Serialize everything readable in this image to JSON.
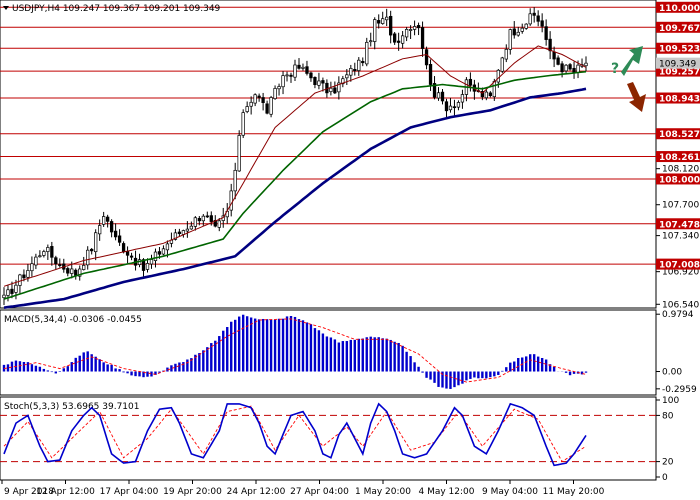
{
  "colors": {
    "level_line": "#c00000",
    "level_badge": "#c00000",
    "price_badge": "#c8c8c8",
    "candle": "#000000",
    "ma_red": "#8b0000",
    "ma_green": "#006400",
    "ma_navy": "#000080",
    "macd_hist": "#0000cc",
    "macd_signal": "#ff0000",
    "stoch_main": "#0000cc",
    "stoch_signal": "#ff0000",
    "arrow_up": "#2e8b57",
    "arrow_down": "#8b2500",
    "question": "#2e8b57"
  },
  "header": {
    "symbol_text": "USDJPY,H4  109.247 109.367 109.201 109.349"
  },
  "signal": {
    "question_mark": "?"
  },
  "chart_data": [
    {
      "type": "candlestick",
      "title": "USDJPY,H4",
      "ohlc_header": {
        "open": 109.247,
        "high": 109.367,
        "low": 109.201,
        "close": 109.349
      },
      "ylim": [
        106.52,
        110.05
      ],
      "y_tick_labels": [
        "110.000",
        "109.767",
        "109.523",
        "109.349",
        "109.257",
        "108.943",
        "108.527",
        "108.261",
        "108.120",
        "108.000",
        "107.700",
        "107.478",
        "107.340",
        "107.008",
        "106.920",
        "106.540"
      ],
      "levels": [
        {
          "label": "110.000",
          "value": 110.0
        },
        {
          "label": "109.767",
          "value": 109.767
        },
        {
          "label": "109.523",
          "value": 109.523
        },
        {
          "label": "109.257",
          "value": 109.257
        },
        {
          "label": "108.943",
          "value": 108.943
        },
        {
          "label": "108.527",
          "value": 108.527
        },
        {
          "label": "108.261",
          "value": 108.261
        },
        {
          "label": "108.000",
          "value": 108.0
        },
        {
          "label": "107.478",
          "value": 107.478
        },
        {
          "label": "107.008",
          "value": 107.008
        }
      ],
      "current_price": {
        "label": "109.349",
        "value": 109.349
      },
      "x_tick_labels": [
        "9 Apr 2018",
        "12 Apr 12:00",
        "17 Apr 04:00",
        "19 Apr 20:00",
        "24 Apr 12:00",
        "27 Apr 04:00",
        "1 May 20:00",
        "4 May 12:00",
        "9 May 04:00",
        "11 May 20:00"
      ],
      "close_anchors": [
        [
          0,
          106.6
        ],
        [
          6,
          106.95
        ],
        [
          10,
          107.2
        ],
        [
          14,
          107.0
        ],
        [
          18,
          106.9
        ],
        [
          22,
          107.2
        ],
        [
          25,
          107.6
        ],
        [
          28,
          107.3
        ],
        [
          32,
          107.1
        ],
        [
          35,
          106.95
        ],
        [
          38,
          107.1
        ],
        [
          42,
          107.3
        ],
        [
          46,
          107.45
        ],
        [
          50,
          107.6
        ],
        [
          53,
          107.4
        ],
        [
          56,
          107.6
        ],
        [
          58,
          108.1
        ],
        [
          60,
          108.8
        ],
        [
          63,
          109.0
        ],
        [
          66,
          108.8
        ],
        [
          70,
          109.2
        ],
        [
          74,
          109.3
        ],
        [
          78,
          109.15
        ],
        [
          82,
          109.0
        ],
        [
          86,
          109.2
        ],
        [
          90,
          109.4
        ],
        [
          93,
          109.8
        ],
        [
          96,
          109.85
        ],
        [
          98,
          109.6
        ],
        [
          102,
          109.8
        ],
        [
          104,
          109.8
        ],
        [
          106,
          109.3
        ],
        [
          108,
          109.0
        ],
        [
          111,
          108.85
        ],
        [
          114,
          108.9
        ],
        [
          116,
          109.1
        ],
        [
          119,
          109.0
        ],
        [
          122,
          108.95
        ],
        [
          124,
          109.3
        ],
        [
          127,
          109.7
        ],
        [
          130,
          109.8
        ],
        [
          133,
          109.9
        ],
        [
          135,
          109.8
        ],
        [
          137,
          109.45
        ],
        [
          140,
          109.3
        ],
        [
          143,
          109.25
        ],
        [
          146,
          109.35
        ]
      ],
      "series": [
        {
          "name": "MA red",
          "anchors": [
            [
              0,
              106.75
            ],
            [
              20,
              107.05
            ],
            [
              40,
              107.25
            ],
            [
              55,
              107.55
            ],
            [
              60,
              107.95
            ],
            [
              68,
              108.6
            ],
            [
              78,
              109.0
            ],
            [
              90,
              109.2
            ],
            [
              100,
              109.4
            ],
            [
              106,
              109.45
            ],
            [
              112,
              109.2
            ],
            [
              120,
              109.0
            ],
            [
              128,
              109.35
            ],
            [
              134,
              109.55
            ],
            [
              140,
              109.45
            ],
            [
              146,
              109.3
            ]
          ]
        },
        {
          "name": "MA green",
          "anchors": [
            [
              0,
              106.6
            ],
            [
              20,
              106.9
            ],
            [
              40,
              107.1
            ],
            [
              55,
              107.3
            ],
            [
              60,
              107.6
            ],
            [
              70,
              108.1
            ],
            [
              80,
              108.55
            ],
            [
              92,
              108.9
            ],
            [
              100,
              109.05
            ],
            [
              110,
              109.1
            ],
            [
              120,
              109.05
            ],
            [
              128,
              109.15
            ],
            [
              136,
              109.2
            ],
            [
              146,
              109.25
            ]
          ]
        },
        {
          "name": "MA navy",
          "anchors": [
            [
              0,
              106.5
            ],
            [
              15,
              106.6
            ],
            [
              30,
              106.8
            ],
            [
              45,
              106.95
            ],
            [
              58,
              107.1
            ],
            [
              68,
              107.5
            ],
            [
              80,
              107.95
            ],
            [
              92,
              108.35
            ],
            [
              102,
              108.6
            ],
            [
              112,
              108.72
            ],
            [
              122,
              108.8
            ],
            [
              132,
              108.95
            ],
            [
              140,
              109.0
            ],
            [
              146,
              109.05
            ]
          ]
        }
      ]
    },
    {
      "type": "bar",
      "title": "MACD(5,34,4) -0.0306 -0.0455",
      "ylim": [
        -0.35,
        1.0
      ],
      "y_tick_labels": [
        "0.9794",
        "0.00",
        "-0.2959"
      ],
      "hist_anchors": [
        [
          0,
          0.1
        ],
        [
          3,
          0.2
        ],
        [
          6,
          0.15
        ],
        [
          10,
          0.05
        ],
        [
          13,
          -0.02
        ],
        [
          16,
          0.1
        ],
        [
          19,
          0.28
        ],
        [
          21,
          0.35
        ],
        [
          24,
          0.2
        ],
        [
          27,
          0.1
        ],
        [
          30,
          0.0
        ],
        [
          33,
          -0.08
        ],
        [
          36,
          -0.1
        ],
        [
          39,
          -0.02
        ],
        [
          42,
          0.1
        ],
        [
          46,
          0.2
        ],
        [
          50,
          0.35
        ],
        [
          54,
          0.6
        ],
        [
          57,
          0.85
        ],
        [
          60,
          0.97
        ],
        [
          64,
          0.9
        ],
        [
          68,
          0.88
        ],
        [
          72,
          0.95
        ],
        [
          76,
          0.85
        ],
        [
          80,
          0.65
        ],
        [
          84,
          0.5
        ],
        [
          88,
          0.55
        ],
        [
          92,
          0.6
        ],
        [
          96,
          0.55
        ],
        [
          100,
          0.45
        ],
        [
          103,
          0.15
        ],
        [
          106,
          -0.1
        ],
        [
          109,
          -0.25
        ],
        [
          112,
          -0.3
        ],
        [
          115,
          -0.2
        ],
        [
          118,
          -0.1
        ],
        [
          121,
          -0.12
        ],
        [
          124,
          -0.05
        ],
        [
          127,
          0.15
        ],
        [
          130,
          0.25
        ],
        [
          133,
          0.3
        ],
        [
          136,
          0.2
        ],
        [
          139,
          0.0
        ],
        [
          142,
          -0.05
        ],
        [
          146,
          -0.03
        ]
      ],
      "signal_anchors": [
        [
          0,
          0.05
        ],
        [
          8,
          0.15
        ],
        [
          14,
          0.05
        ],
        [
          22,
          0.25
        ],
        [
          30,
          0.05
        ],
        [
          38,
          -0.05
        ],
        [
          46,
          0.15
        ],
        [
          56,
          0.6
        ],
        [
          64,
          0.88
        ],
        [
          72,
          0.9
        ],
        [
          80,
          0.75
        ],
        [
          88,
          0.55
        ],
        [
          96,
          0.55
        ],
        [
          104,
          0.3
        ],
        [
          110,
          -0.05
        ],
        [
          116,
          -0.18
        ],
        [
          124,
          -0.1
        ],
        [
          132,
          0.2
        ],
        [
          140,
          0.05
        ],
        [
          146,
          -0.05
        ]
      ]
    },
    {
      "type": "line",
      "title": "Stoch(5,3,3) 53.6965 39.7101",
      "ylim": [
        0,
        100
      ],
      "y_tick_labels": [
        "100",
        "80",
        "20",
        "0"
      ],
      "levels": [
        80,
        20
      ],
      "main_anchors": [
        [
          0,
          30
        ],
        [
          3,
          70
        ],
        [
          6,
          80
        ],
        [
          9,
          40
        ],
        [
          11,
          20
        ],
        [
          14,
          22
        ],
        [
          17,
          60
        ],
        [
          20,
          80
        ],
        [
          22,
          90
        ],
        [
          24,
          80
        ],
        [
          27,
          30
        ],
        [
          30,
          18
        ],
        [
          33,
          20
        ],
        [
          36,
          60
        ],
        [
          39,
          88
        ],
        [
          42,
          90
        ],
        [
          44,
          70
        ],
        [
          47,
          30
        ],
        [
          50,
          25
        ],
        [
          54,
          60
        ],
        [
          56,
          95
        ],
        [
          59,
          95
        ],
        [
          62,
          90
        ],
        [
          64,
          70
        ],
        [
          66,
          40
        ],
        [
          68,
          30
        ],
        [
          70,
          55
        ],
        [
          72,
          80
        ],
        [
          75,
          85
        ],
        [
          78,
          60
        ],
        [
          80,
          30
        ],
        [
          82,
          25
        ],
        [
          84,
          55
        ],
        [
          86,
          70
        ],
        [
          88,
          50
        ],
        [
          90,
          30
        ],
        [
          92,
          70
        ],
        [
          94,
          95
        ],
        [
          96,
          85
        ],
        [
          98,
          60
        ],
        [
          100,
          30
        ],
        [
          103,
          25
        ],
        [
          106,
          30
        ],
        [
          110,
          60
        ],
        [
          113,
          90
        ],
        [
          115,
          80
        ],
        [
          118,
          40
        ],
        [
          121,
          30
        ],
        [
          124,
          60
        ],
        [
          127,
          95
        ],
        [
          130,
          90
        ],
        [
          133,
          80
        ],
        [
          136,
          40
        ],
        [
          138,
          15
        ],
        [
          141,
          18
        ],
        [
          143,
          30
        ],
        [
          146,
          54
        ]
      ],
      "signal_anchors": [
        [
          0,
          40
        ],
        [
          6,
          72
        ],
        [
          12,
          25
        ],
        [
          18,
          55
        ],
        [
          24,
          85
        ],
        [
          30,
          25
        ],
        [
          36,
          50
        ],
        [
          42,
          88
        ],
        [
          50,
          30
        ],
        [
          56,
          85
        ],
        [
          62,
          92
        ],
        [
          68,
          35
        ],
        [
          74,
          80
        ],
        [
          80,
          40
        ],
        [
          86,
          65
        ],
        [
          90,
          40
        ],
        [
          96,
          85
        ],
        [
          102,
          35
        ],
        [
          108,
          45
        ],
        [
          114,
          85
        ],
        [
          120,
          40
        ],
        [
          128,
          88
        ],
        [
          134,
          75
        ],
        [
          140,
          20
        ],
        [
          146,
          40
        ]
      ]
    }
  ]
}
